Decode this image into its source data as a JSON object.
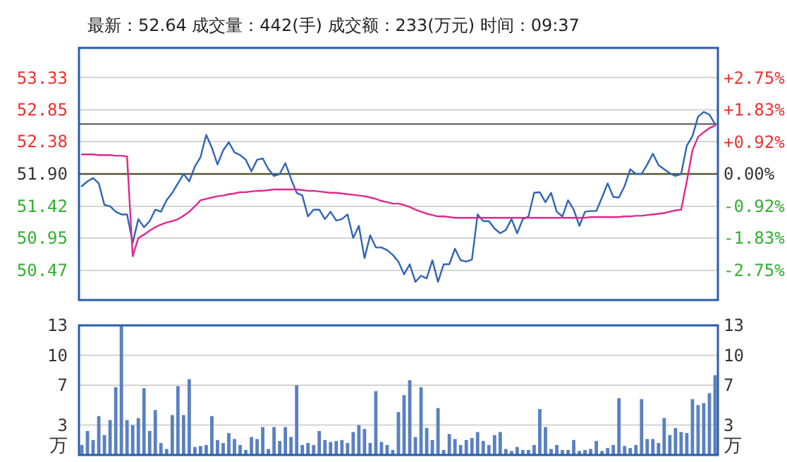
{
  "chart_data": [
    {
      "type": "line",
      "title": "最新：52.64 成交量：442(手) 成交额：233(万元) 时间：09:37",
      "categories": [
        null,
        null,
        null,
        null,
        null,
        null,
        null,
        null,
        null,
        null,
        null,
        null,
        null,
        null,
        null,
        null,
        null,
        null,
        null,
        null,
        null,
        null,
        null,
        null,
        null,
        null,
        null,
        null,
        null,
        null,
        null,
        null,
        null,
        null,
        null,
        null,
        null,
        null,
        null,
        null,
        null,
        null,
        null,
        null,
        null,
        null,
        null,
        null,
        null,
        null,
        null,
        null,
        null,
        null,
        null,
        null,
        null,
        null,
        null,
        null,
        null,
        null,
        null,
        null,
        null,
        null,
        null,
        null,
        null,
        null,
        null,
        null,
        null,
        null,
        null,
        null,
        null,
        null,
        null,
        null,
        null,
        null,
        null,
        null,
        null,
        null,
        null,
        null,
        null,
        null,
        null,
        null,
        null,
        null,
        null,
        null,
        null,
        null,
        null,
        null,
        null,
        null,
        null,
        null,
        null,
        null,
        null,
        null,
        null,
        null,
        null,
        null,
        null
      ],
      "series": [
        {
          "color": "#3064b4",
          "values": [
            51.72,
            51.79,
            51.84,
            51.76,
            51.44,
            51.42,
            51.34,
            51.3,
            51.3,
            50.88,
            51.23,
            51.11,
            51.2,
            51.37,
            51.34,
            51.51,
            51.62,
            51.76,
            51.9,
            51.79,
            52.01,
            52.15,
            52.48,
            52.29,
            52.04,
            52.25,
            52.37,
            52.22,
            52.18,
            52.11,
            51.94,
            52.11,
            52.13,
            51.97,
            51.87,
            51.9,
            52.06,
            51.83,
            51.62,
            51.58,
            51.27,
            51.37,
            51.37,
            51.23,
            51.34,
            51.21,
            51.23,
            51.3,
            50.95,
            51.13,
            50.65,
            50.99,
            50.81,
            50.81,
            50.77,
            50.7,
            50.6,
            50.41,
            50.56,
            50.3,
            50.39,
            50.35,
            50.62,
            50.3,
            50.56,
            50.56,
            50.79,
            50.62,
            50.6,
            50.63,
            51.3,
            51.2,
            51.2,
            51.09,
            51.02,
            51.07,
            51.23,
            51.02,
            51.23,
            51.27,
            51.62,
            51.63,
            51.48,
            51.62,
            51.34,
            51.27,
            51.51,
            51.37,
            51.13,
            51.34,
            51.35,
            51.35,
            51.55,
            51.76,
            51.56,
            51.55,
            51.72,
            51.97,
            51.9,
            51.9,
            52.04,
            52.2,
            52.03,
            51.97,
            51.91,
            51.87,
            51.9,
            52.32,
            52.46,
            52.75,
            52.82,
            52.78,
            52.64
          ]
        },
        {
          "color": "#e0288c",
          "values": [
            52.19,
            52.19,
            52.19,
            52.18,
            52.18,
            52.18,
            52.17,
            52.17,
            52.16,
            50.68,
            50.95,
            51.0,
            51.06,
            51.11,
            51.15,
            51.18,
            51.2,
            51.23,
            51.28,
            51.34,
            51.42,
            51.51,
            51.53,
            51.55,
            51.57,
            51.58,
            51.6,
            51.61,
            51.63,
            51.63,
            51.64,
            51.65,
            51.65,
            51.66,
            51.67,
            51.67,
            51.67,
            51.67,
            51.67,
            51.66,
            51.65,
            51.65,
            51.64,
            51.63,
            51.62,
            51.62,
            51.61,
            51.6,
            51.59,
            51.58,
            51.57,
            51.55,
            51.53,
            51.5,
            51.48,
            51.46,
            51.46,
            51.44,
            51.41,
            51.37,
            51.34,
            51.31,
            51.29,
            51.27,
            51.27,
            51.26,
            51.25,
            51.25,
            51.25,
            51.25,
            51.25,
            51.25,
            51.25,
            51.25,
            51.25,
            51.25,
            51.25,
            51.25,
            51.25,
            51.25,
            51.25,
            51.25,
            51.25,
            51.25,
            51.25,
            51.25,
            51.25,
            51.25,
            51.25,
            51.25,
            51.26,
            51.26,
            51.26,
            51.26,
            51.26,
            51.26,
            51.27,
            51.27,
            51.28,
            51.28,
            51.29,
            51.3,
            51.31,
            51.32,
            51.34,
            51.36,
            51.37,
            51.79,
            52.25,
            52.45,
            52.52,
            52.58,
            52.62
          ]
        }
      ],
      "ylim": [
        50.03,
        53.77
      ],
      "yticks": [
        50.47,
        50.95,
        51.42,
        {
          "value": 51.9,
          "label": "51.90"
        },
        52.38,
        52.85,
        53.33
      ],
      "y2lim": [
        -3.6,
        3.6
      ],
      "y2ticks": [
        {
          "value": -2.75,
          "label": "-2.75%"
        },
        {
          "value": -1.83,
          "label": "-1.83%"
        },
        {
          "value": -0.92,
          "label": "-0.92%"
        },
        {
          "value": 0,
          "label": "0.00%"
        },
        {
          "value": 0.92,
          "label": "+0.92%"
        },
        {
          "value": 1.83,
          "label": "+1.83%"
        },
        {
          "value": 2.75,
          "label": "+2.75%"
        }
      ],
      "ref_lines": [
        {
          "axis": "y",
          "value": 51.9,
          "color": "#555533"
        },
        {
          "axis": "y",
          "value": 52.64,
          "color": "#666666"
        }
      ],
      "grid": "y"
    },
    {
      "type": "bar",
      "categories": [
        null,
        null,
        null,
        null,
        null,
        null,
        null,
        null,
        null,
        null,
        null,
        null,
        null,
        null,
        null,
        null,
        null,
        null,
        null,
        null,
        null,
        null,
        null,
        null,
        null,
        null,
        null,
        null,
        null,
        null,
        null,
        null,
        null,
        null,
        null,
        null,
        null,
        null,
        null,
        null,
        null,
        null,
        null,
        null,
        null,
        null,
        null,
        null,
        null,
        null,
        null,
        null,
        null,
        null,
        null,
        null,
        null,
        null,
        null,
        null,
        null,
        null,
        null,
        null,
        null,
        null,
        null,
        null,
        null,
        null,
        null,
        null,
        null,
        null,
        null,
        null,
        null,
        null,
        null,
        null,
        null,
        null,
        null,
        null,
        null,
        null,
        null,
        null,
        null,
        null,
        null,
        null,
        null,
        null,
        null,
        null,
        null,
        null,
        null,
        null,
        null,
        null,
        null,
        null,
        null,
        null,
        null,
        null,
        null,
        null,
        null,
        null,
        null
      ],
      "values": [
        1.0,
        2.4,
        1.5,
        3.9,
        2.0,
        3.5,
        6.8,
        13,
        3.5,
        3.0,
        3.7,
        6.7,
        2.4,
        4.5,
        1.2,
        0.6,
        4.0,
        6.9,
        4.0,
        7.6,
        0.8,
        0.9,
        1.0,
        3.9,
        1.5,
        1.2,
        2.2,
        1.6,
        1.0,
        0.5,
        1.8,
        1.6,
        2.8,
        0.6,
        2.8,
        1.4,
        2.8,
        1.8,
        7.0,
        1.0,
        1.2,
        1.0,
        2.4,
        1.5,
        1.3,
        1.4,
        1.5,
        1.2,
        2.3,
        3.0,
        2.6,
        1.2,
        6.4,
        1.3,
        1.0,
        0.5,
        4.3,
        6.0,
        7.5,
        1.8,
        6.8,
        2.7,
        1.5,
        4.7,
        0.5,
        2.1,
        1.6,
        1.0,
        1.5,
        1.7,
        2.3,
        1.4,
        1.0,
        2.0,
        2.3,
        0.6,
        0.4,
        0.8,
        0.5,
        0.5,
        1.0,
        4.6,
        2.8,
        0.6,
        1.0,
        0.5,
        0.5,
        1.5,
        0.4,
        0.5,
        0.6,
        1.4,
        0.4,
        0.7,
        1.0,
        5.7,
        0.9,
        0.7,
        1.0,
        5.6,
        1.6,
        1.6,
        1.2,
        3.7,
        2.0,
        2.7,
        2.3,
        2.2,
        5.6,
        5.0,
        5.2,
        6.2,
        8.0
      ],
      "color": "#5a80c0",
      "ylim": [
        0,
        13
      ],
      "yticks": [
        3,
        7,
        10,
        13
      ],
      "y2lim": [
        0,
        13
      ],
      "y2ticks": [
        3,
        7,
        10,
        13
      ],
      "ylabel": "万",
      "y2label": "万",
      "grid": "y"
    }
  ]
}
